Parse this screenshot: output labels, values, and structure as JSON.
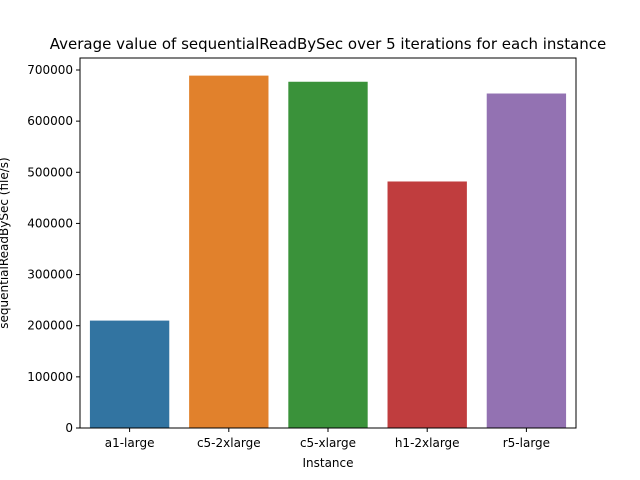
{
  "chart_data": {
    "type": "bar",
    "title": "Average value of sequentialReadBySec over 5 iterations for each instance",
    "xlabel": "Instance",
    "ylabel": "sequentialReadBySec (file/s)",
    "categories": [
      "a1-large",
      "c5-2xlarge",
      "c5-xlarge",
      "h1-2xlarge",
      "r5-large"
    ],
    "values": [
      210000,
      689000,
      677000,
      482000,
      654000
    ],
    "colors": [
      "#3274a1",
      "#e1812c",
      "#3a923a",
      "#c03d3e",
      "#9372b2"
    ],
    "ylim": [
      0,
      723450
    ],
    "yticks": [
      0,
      100000,
      200000,
      300000,
      400000,
      500000,
      600000,
      700000
    ],
    "ytick_labels": [
      "0",
      "100000",
      "200000",
      "300000",
      "400000",
      "500000",
      "600000",
      "700000"
    ],
    "grid": false,
    "legend": "none"
  }
}
